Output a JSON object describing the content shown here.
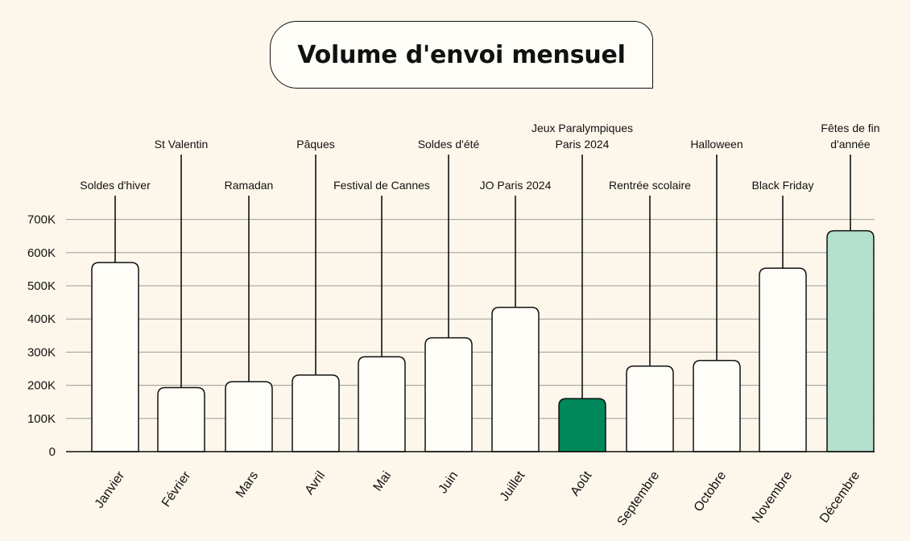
{
  "chart_data": {
    "type": "bar",
    "title": "Volume d'envoi mensuel",
    "xlabel": "",
    "ylabel": "",
    "ylim": [
      0,
      700000
    ],
    "y_ticks": [
      0,
      100000,
      200000,
      300000,
      400000,
      500000,
      600000,
      700000
    ],
    "y_tick_labels": [
      "0",
      "100K",
      "200K",
      "300K",
      "400K",
      "500K",
      "600K",
      "700K"
    ],
    "grid": true,
    "legend": "none",
    "categories": [
      "Janvier",
      "Février",
      "Mars",
      "Avril",
      "Mai",
      "Juin",
      "Juillet",
      "Août",
      "Septembre",
      "Octobre",
      "Novembre",
      "Décembre"
    ],
    "values": [
      570000,
      193000,
      211000,
      231000,
      286000,
      343000,
      435000,
      160000,
      258000,
      275000,
      553000,
      666000
    ],
    "annotations": [
      [
        "Soldes d'hiver"
      ],
      [
        "St Valentin"
      ],
      [
        "Ramadan"
      ],
      [
        "Pâques"
      ],
      [
        "Festival de Cannes"
      ],
      [
        "Soldes d'été"
      ],
      [
        "JO Paris 2024"
      ],
      [
        "Jeux Paralympiques",
        "Paris 2024"
      ],
      [
        "Rentrée scolaire"
      ],
      [
        "Halloween"
      ],
      [
        "Black Friday"
      ],
      [
        "Fêtes de fin",
        "d'année"
      ]
    ],
    "annotation_level": [
      "low",
      "high",
      "low",
      "high",
      "low",
      "high",
      "low",
      "high",
      "low",
      "high",
      "low",
      "high"
    ],
    "highlights": {
      "Août": "#00875a",
      "Décembre": "#b3e0cf"
    },
    "colors": {
      "background": "#fdf7eb",
      "bar_default": "#fffdf8",
      "outline": "#111111",
      "grid": "#9a9a9a"
    }
  }
}
